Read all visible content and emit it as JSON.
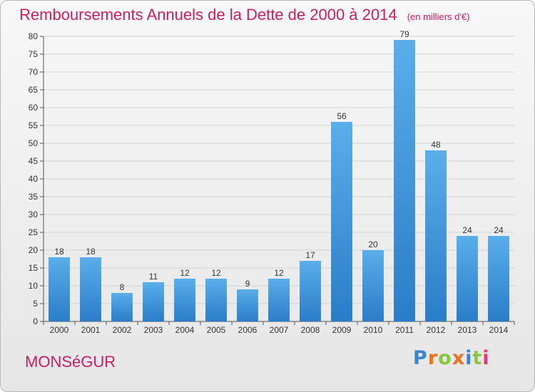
{
  "chart_data": {
    "type": "bar",
    "title": "Remboursements Annuels de la Dette de 2000 à 2014",
    "unit": "(en milliers d'€)",
    "categories": [
      "2000",
      "2001",
      "2002",
      "2003",
      "2004",
      "2005",
      "2006",
      "2007",
      "2008",
      "2009",
      "2010",
      "2011",
      "2012",
      "2013",
      "2014"
    ],
    "values": [
      18,
      18,
      8,
      11,
      12,
      12,
      9,
      12,
      17,
      56,
      20,
      79,
      48,
      24,
      24
    ],
    "ylim": [
      0,
      80
    ],
    "ytick_step": 5,
    "grid": true,
    "bar_color": "#3a8fd8"
  },
  "footer": {
    "town": "MONSéGUR",
    "logo": {
      "letters": [
        "P",
        "r",
        "o",
        "x",
        "i",
        "t",
        "i"
      ],
      "colors": [
        "#3d84cf",
        "#e8721d",
        "#8cc63f",
        "#e8721d",
        "#3d84cf",
        "#8cc63f",
        "#e23b7a"
      ]
    }
  }
}
